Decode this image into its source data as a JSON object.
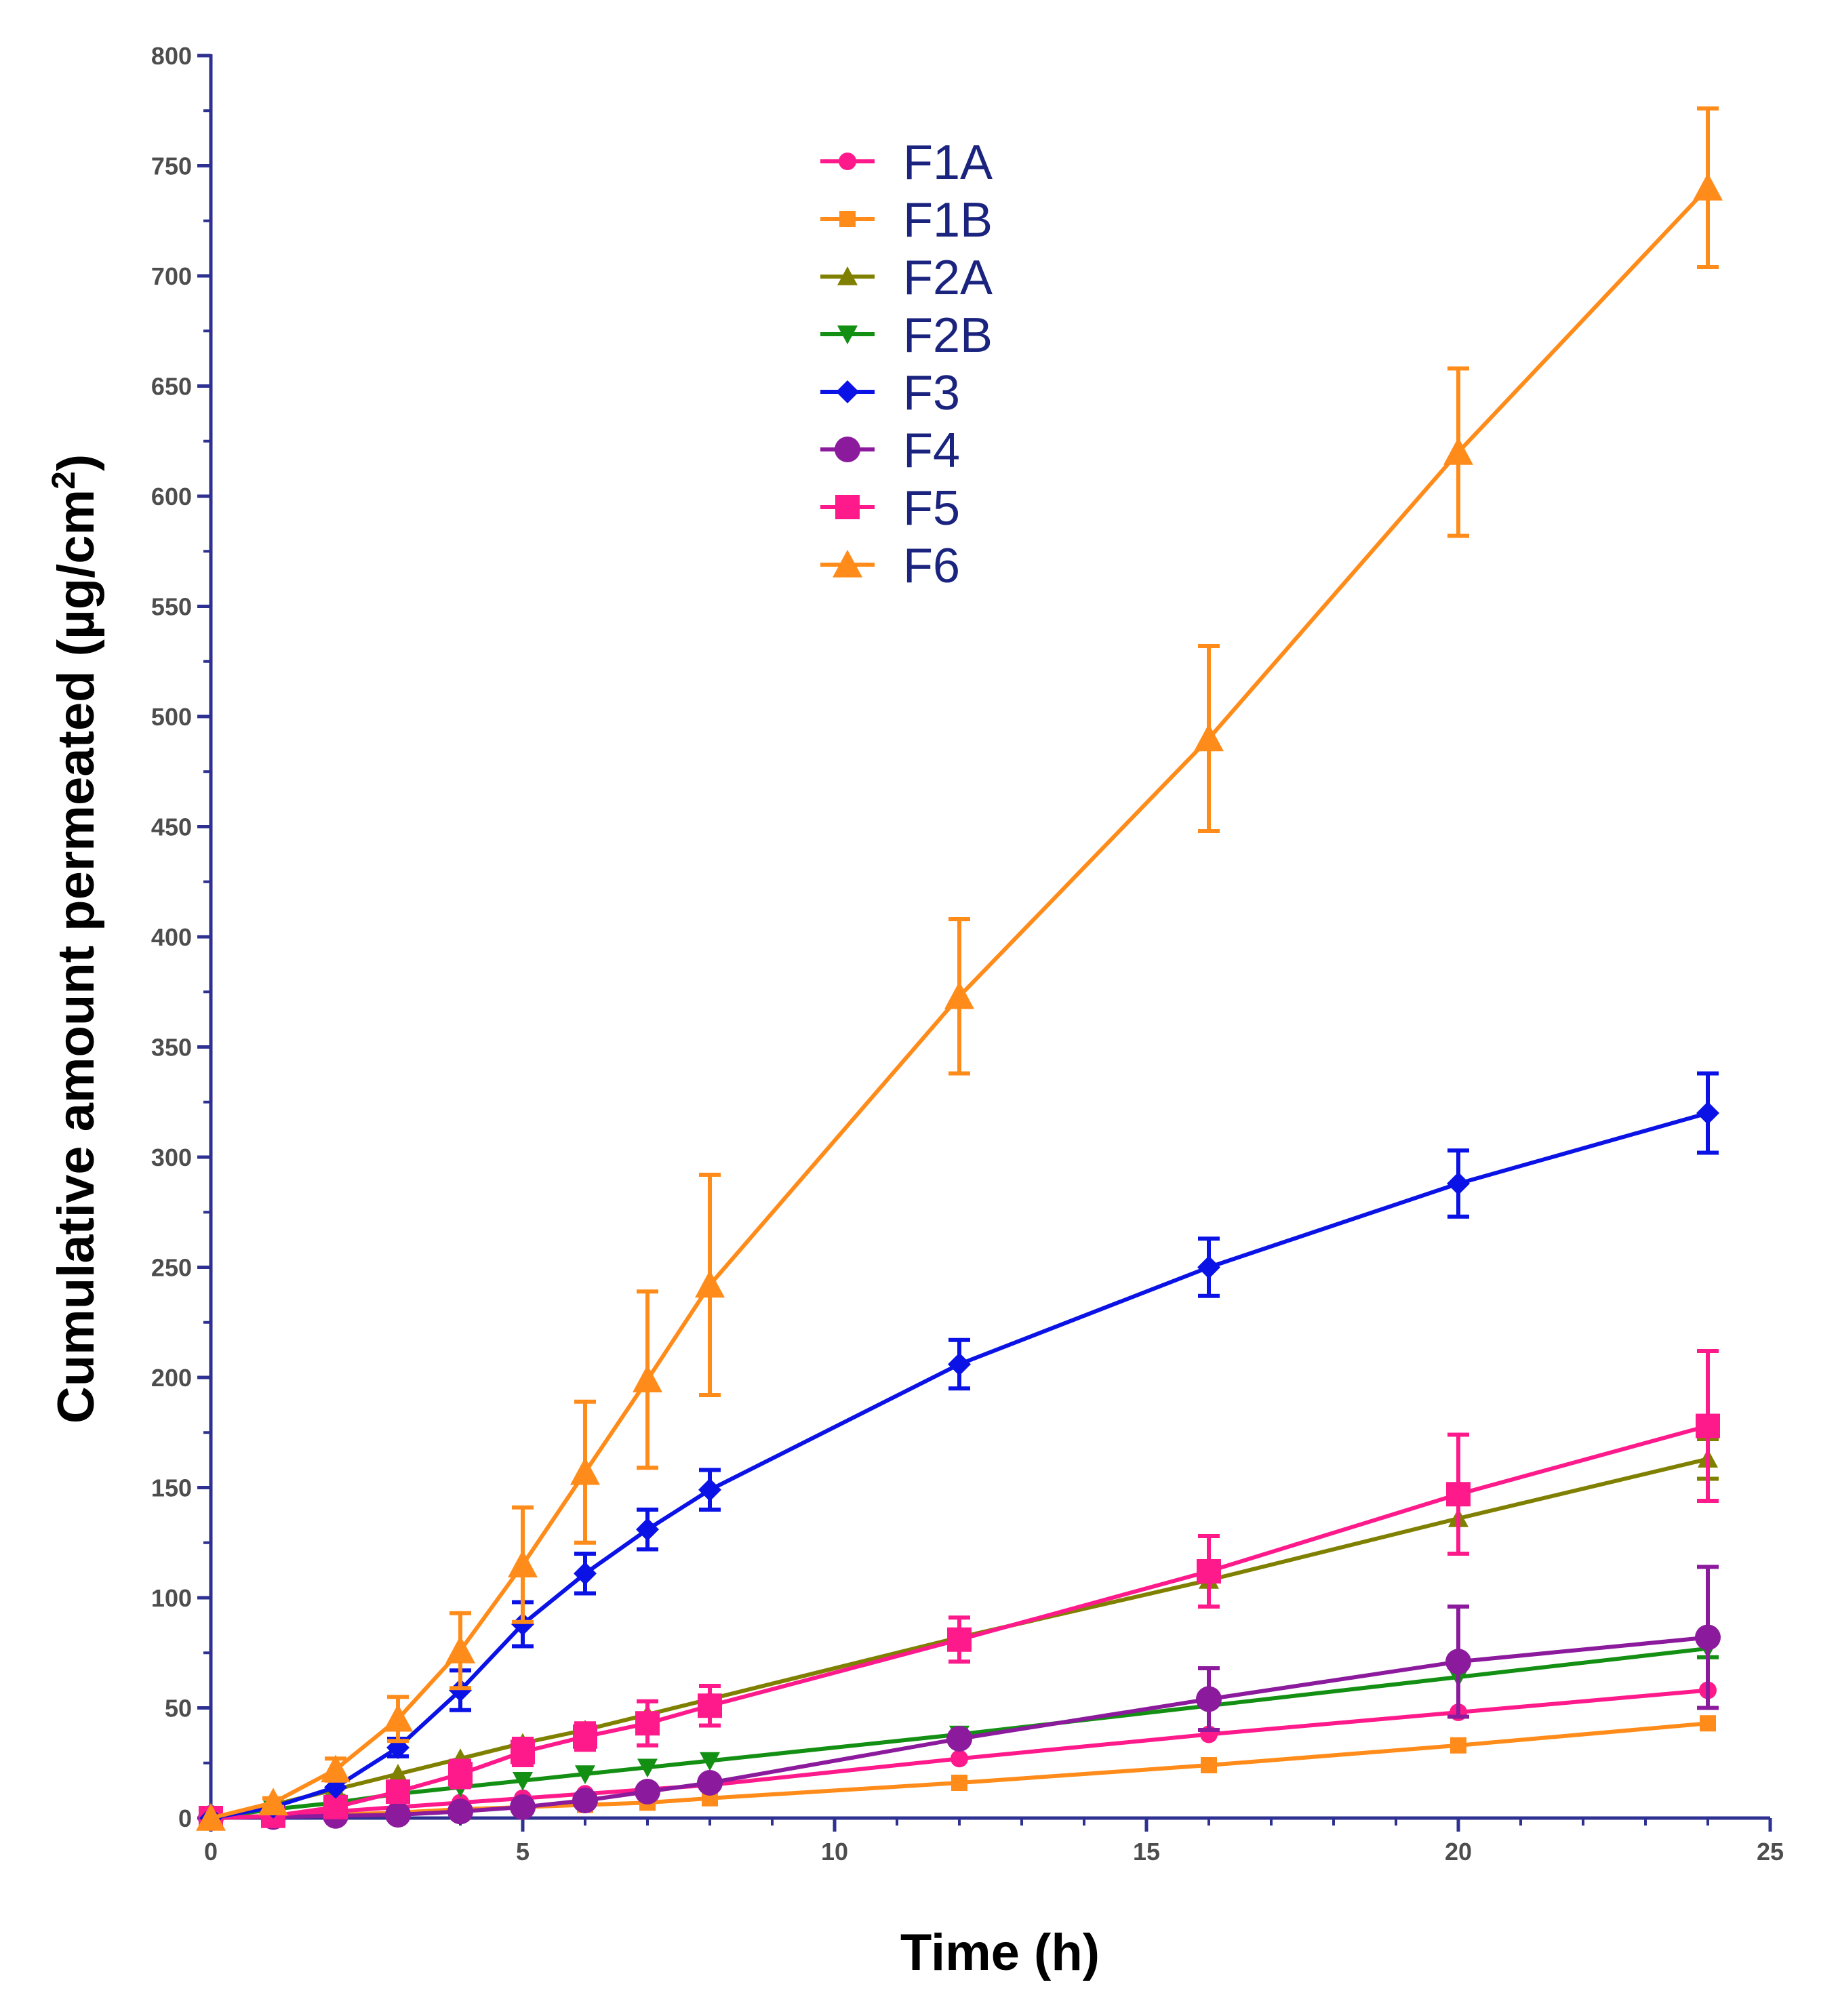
{
  "chart_data": {
    "type": "line",
    "title": "",
    "xlabel": "Time (h)",
    "ylabel": "Cumulative amount permeated (µg/cm",
    "ylabel_superscript": "2",
    "ylabel_close": ")",
    "xlim": [
      0,
      25
    ],
    "ylim": [
      0,
      800
    ],
    "xticks": [
      "0",
      "5",
      "10",
      "15",
      "20",
      "25"
    ],
    "yticks": [
      "0",
      "50",
      "100",
      "150",
      "200",
      "250",
      "300",
      "350",
      "400",
      "450",
      "500",
      "550",
      "600",
      "650",
      "700",
      "750",
      "800"
    ],
    "axis_color": "#2e3192",
    "legend_position": "top-center",
    "grid": false,
    "x": [
      0,
      1,
      2,
      3,
      4,
      5,
      6,
      7,
      8,
      12,
      16,
      20,
      24
    ],
    "series": [
      {
        "name": "F1A",
        "color": "#ff1a8c",
        "marker": "circle-small",
        "values": [
          0,
          1,
          3,
          5,
          7,
          9,
          11,
          13,
          15,
          27,
          38,
          48,
          58
        ],
        "errors": [
          0,
          0,
          0,
          0,
          0,
          0,
          0,
          0,
          0,
          0,
          0,
          0,
          0
        ]
      },
      {
        "name": "F1B",
        "color": "#ff8c1a",
        "marker": "square-small",
        "values": [
          0,
          0.5,
          1.5,
          2.5,
          4,
          5,
          6,
          7,
          9,
          16,
          24,
          33,
          43
        ],
        "errors": [
          0,
          0,
          0,
          0,
          0,
          0,
          0,
          0,
          0,
          0,
          0,
          0,
          0
        ]
      },
      {
        "name": "F2A",
        "color": "#808000",
        "marker": "triangle-up-small",
        "values": [
          0,
          6,
          13,
          20,
          27,
          34,
          40,
          47,
          54,
          82,
          108,
          136,
          163
        ],
        "errors": [
          0,
          0,
          0,
          0,
          0,
          0,
          0,
          0,
          0,
          0,
          0,
          0,
          9
        ]
      },
      {
        "name": "F2B",
        "color": "#138f13",
        "marker": "triangle-down-small",
        "values": [
          0,
          4,
          7,
          11,
          14,
          17,
          20,
          23,
          26,
          38,
          51,
          64,
          77
        ],
        "errors": [
          0,
          0,
          0,
          0,
          0,
          0,
          0,
          0,
          0,
          0,
          0,
          0,
          4
        ]
      },
      {
        "name": "F3",
        "color": "#0a12e6",
        "marker": "diamond",
        "values": [
          0,
          5,
          14,
          32,
          58,
          88,
          111,
          131,
          149,
          206,
          250,
          288,
          320
        ],
        "errors": [
          0,
          0,
          0,
          4,
          9,
          10,
          9,
          9,
          9,
          11,
          13,
          15,
          18
        ]
      },
      {
        "name": "F4",
        "color": "#8b1a9c",
        "marker": "circle",
        "values": [
          0,
          0.5,
          1,
          1.5,
          3,
          5,
          8,
          12,
          16,
          36,
          54,
          71,
          82
        ],
        "errors": [
          0,
          0,
          0,
          0,
          0,
          0,
          0,
          0,
          0,
          0,
          14,
          25,
          32
        ]
      },
      {
        "name": "F5",
        "color": "#ff1a8c",
        "marker": "square",
        "values": [
          0,
          1,
          5,
          12,
          20,
          30,
          37,
          43,
          51,
          81,
          112,
          147,
          178
        ],
        "errors": [
          0,
          0,
          2,
          4,
          6,
          6,
          6,
          10,
          9,
          10,
          16,
          27,
          34
        ]
      },
      {
        "name": "F6",
        "color": "#ff8c1a",
        "marker": "triangle-up",
        "values": [
          0,
          7,
          22,
          45,
          76,
          115,
          157,
          199,
          242,
          373,
          490,
          620,
          740
        ],
        "errors": [
          0,
          2,
          5,
          10,
          17,
          26,
          32,
          40,
          50,
          35,
          42,
          38,
          36
        ]
      }
    ]
  }
}
